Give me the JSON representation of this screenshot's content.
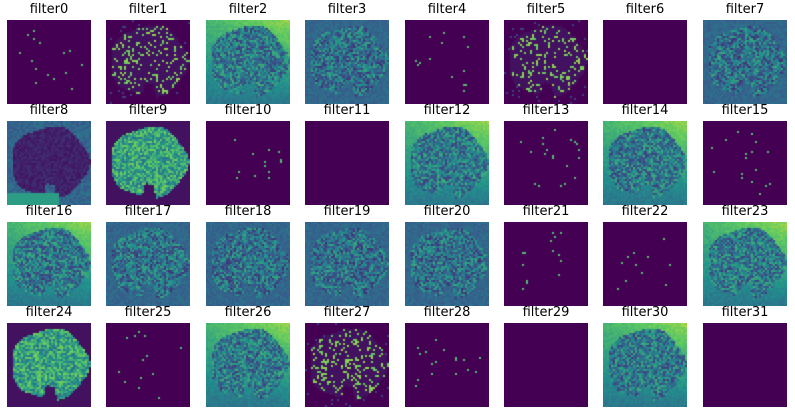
{
  "figure": {
    "colormap": [
      "#440154",
      "#3b528b",
      "#21918c",
      "#5ec962",
      "#fde725"
    ],
    "panels": [
      {
        "title": "filter0",
        "activation": "sparse",
        "level": 0.06
      },
      {
        "title": "filter1",
        "activation": "edges",
        "level": 0.3
      },
      {
        "title": "filter2",
        "activation": "strong",
        "level": 0.75
      },
      {
        "title": "filter3",
        "activation": "texture",
        "level": 0.4
      },
      {
        "title": "filter4",
        "activation": "sparse",
        "level": 0.04
      },
      {
        "title": "filter5",
        "activation": "edges",
        "level": 0.22
      },
      {
        "title": "filter6",
        "activation": "empty",
        "level": 0.0
      },
      {
        "title": "filter7",
        "activation": "texture",
        "level": 0.35
      },
      {
        "title": "filter8",
        "activation": "contour",
        "level": 0.25
      },
      {
        "title": "filter9",
        "activation": "leaf",
        "level": 0.55
      },
      {
        "title": "filter10",
        "activation": "sparse",
        "level": 0.08
      },
      {
        "title": "filter11",
        "activation": "empty",
        "level": 0.0
      },
      {
        "title": "filter12",
        "activation": "strong",
        "level": 0.6
      },
      {
        "title": "filter13",
        "activation": "sparse",
        "level": 0.03
      },
      {
        "title": "filter14",
        "activation": "strong",
        "level": 0.8
      },
      {
        "title": "filter15",
        "activation": "sparse",
        "level": 0.07
      },
      {
        "title": "filter16",
        "activation": "strong",
        "level": 0.55
      },
      {
        "title": "filter17",
        "activation": "texture",
        "level": 0.45
      },
      {
        "title": "filter18",
        "activation": "texture",
        "level": 0.45
      },
      {
        "title": "filter19",
        "activation": "texture",
        "level": 0.45
      },
      {
        "title": "filter20",
        "activation": "texture",
        "level": 0.5
      },
      {
        "title": "filter21",
        "activation": "sparse",
        "level": 0.06
      },
      {
        "title": "filter22",
        "activation": "sparse",
        "level": 0.02
      },
      {
        "title": "filter23",
        "activation": "strong",
        "level": 0.6
      },
      {
        "title": "filter24",
        "activation": "leaf",
        "level": 0.45
      },
      {
        "title": "filter25",
        "activation": "sparse",
        "level": 0.05
      },
      {
        "title": "filter26",
        "activation": "strong",
        "level": 0.6
      },
      {
        "title": "filter27",
        "activation": "edges",
        "level": 0.25
      },
      {
        "title": "filter28",
        "activation": "sparse",
        "level": 0.02
      },
      {
        "title": "filter29",
        "activation": "empty",
        "level": 0.0
      },
      {
        "title": "filter30",
        "activation": "strong",
        "level": 0.65
      },
      {
        "title": "filter31",
        "activation": "empty",
        "level": 0.0
      }
    ]
  }
}
